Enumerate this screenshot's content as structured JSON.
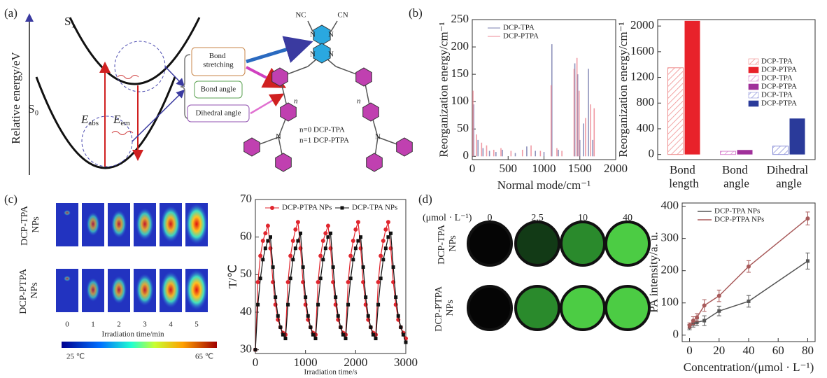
{
  "panel_labels": [
    "(a)",
    "(b)",
    "(c)",
    "(d)"
  ],
  "diagram": {
    "y_axis_label": "Relative energy/eV",
    "s1": "S₁",
    "s0": "S₀",
    "e_abs": {
      "main": "E",
      "sub": "abs"
    },
    "e_em": {
      "main": "E",
      "sub": "em"
    },
    "boxes": [
      "Bond stretching",
      "Bond angle",
      "Dihedral angle"
    ],
    "molecule": {
      "nc": "NC",
      "cn": "CN",
      "atom": "N",
      "repeat": "n",
      "names": [
        "n=0 DCP-TPA",
        "n=1 DCP-PTPA"
      ]
    }
  },
  "thermal_images": {
    "rows": [
      "DCP-TPA NPs",
      "DCP-PTPA NPs"
    ],
    "times": [
      "0",
      "1",
      "2",
      "3",
      "4",
      "5"
    ],
    "x_label": "Irradiation time/min",
    "colorbar": [
      "25 ℃",
      "65 ℃"
    ]
  },
  "pa_images": {
    "unit": "(μmol · L⁻¹)",
    "concentrations": [
      "0",
      "2.5",
      "10",
      "40"
    ],
    "rows": [
      "DCP-TPA NPs",
      "DCP-PTPA NPs"
    ]
  },
  "chart_data": [
    {
      "type": "stick",
      "x_label": "Normal mode/cm⁻¹",
      "y_label": "Reorganization energy/cm⁻¹",
      "xlim": [
        0,
        2000
      ],
      "xticks": [
        0,
        500,
        1000,
        1500,
        2000
      ],
      "ylim": [
        -6,
        250
      ],
      "yticks": [
        0,
        50,
        100,
        150,
        200,
        250
      ],
      "legend": "upper left",
      "series": [
        {
          "name": "DCP-TPA",
          "color": "#7b7fb0",
          "x": [
            20,
            80,
            150,
            240,
            330,
            420,
            600,
            760,
            880,
            1000,
            1110,
            1200,
            1430,
            1470,
            1500,
            1550,
            1620,
            1680
          ],
          "values": [
            95,
            30,
            15,
            10,
            8,
            12,
            6,
            18,
            10,
            8,
            205,
            12,
            170,
            150,
            30,
            60,
            160,
            30
          ]
        },
        {
          "name": "DCP-PTPA",
          "color": "#ee8a96",
          "x": [
            10,
            60,
            130,
            200,
            300,
            400,
            540,
            700,
            820,
            950,
            1100,
            1180,
            1250,
            1420,
            1460,
            1490,
            1580,
            1650,
            1700
          ],
          "values": [
            120,
            40,
            25,
            20,
            12,
            15,
            10,
            12,
            20,
            10,
            130,
            15,
            10,
            160,
            180,
            120,
            70,
            95,
            88
          ]
        }
      ]
    },
    {
      "type": "bar",
      "y_label": "Reorganization energy/cm⁻¹",
      "categories": [
        "Bond length",
        "Bond angle",
        "Dihedral angle"
      ],
      "ylim": [
        -80,
        2100
      ],
      "yticks": [
        0,
        400,
        800,
        1200,
        1600,
        2000
      ],
      "legend": "center right",
      "series": [
        {
          "name": "DCP-TPA",
          "color": "#ee8a8a",
          "hatched": true,
          "values": [
            1350,
            null,
            null
          ]
        },
        {
          "name": "DCP-PTPA",
          "color": "#e8222a",
          "hatched": false,
          "values": [
            2080,
            null,
            null
          ]
        },
        {
          "name": "DCP-TPA",
          "color": "#d98ad0",
          "hatched": true,
          "values": [
            null,
            50,
            null
          ]
        },
        {
          "name": "DCP-PTPA",
          "color": "#a0309a",
          "hatched": false,
          "values": [
            null,
            70,
            null
          ]
        },
        {
          "name": "DCP-TPA",
          "color": "#8a8fd8",
          "hatched": true,
          "values": [
            null,
            null,
            130
          ]
        },
        {
          "name": "DCP-PTPA",
          "color": "#2a3a9a",
          "hatched": false,
          "values": [
            null,
            null,
            560
          ]
        }
      ]
    },
    {
      "type": "line",
      "x_label": "Irradiation time/s",
      "y_label": "T/℃",
      "xlim": [
        0,
        3000
      ],
      "xticks": [
        0,
        1000,
        2000,
        3000
      ],
      "ylim": [
        29,
        70
      ],
      "yticks": [
        30,
        40,
        50,
        60,
        70
      ],
      "legend": "upper center",
      "x": [
        0,
        50,
        100,
        150,
        200,
        250,
        300,
        350,
        400,
        450,
        500,
        550,
        600,
        650,
        700,
        750,
        800,
        850,
        900,
        950,
        1000,
        1050,
        1100,
        1150,
        1200,
        1250,
        1300,
        1350,
        1400,
        1450,
        1500,
        1550,
        1600,
        1650,
        1700,
        1750,
        1800,
        1850,
        1900,
        1950,
        2000,
        2050,
        2100,
        2150,
        2200,
        2250,
        2300,
        2350,
        2400,
        2450,
        2500,
        2550,
        2600,
        2650,
        2700,
        2750,
        2800,
        2850,
        2900,
        2950,
        3000
      ],
      "series": [
        {
          "name": "DCP-PTPA NPs",
          "color": "#e0262e",
          "marker": "circle",
          "values": [
            30,
            48,
            55,
            59,
            61,
            63,
            57,
            48,
            42,
            38,
            36,
            34.5,
            34,
            48,
            55,
            59,
            62,
            64,
            57,
            48,
            42,
            38,
            36,
            34.5,
            34,
            48,
            55,
            59,
            61,
            63,
            57,
            48,
            42,
            38,
            36,
            34.5,
            34,
            48,
            55,
            59,
            62,
            64,
            57,
            48,
            42,
            38,
            36,
            34.5,
            34,
            48,
            55,
            59,
            62,
            64,
            57,
            48,
            42,
            38,
            36,
            34.5,
            33
          ]
        },
        {
          "name": "DCP-TPA NPs",
          "color": "#111111",
          "marker": "square",
          "values": [
            30,
            42,
            49,
            54,
            57,
            59,
            60,
            52,
            44,
            39,
            36,
            34,
            33,
            42,
            49,
            54,
            57,
            59,
            61,
            52,
            44,
            39,
            36,
            34,
            33,
            42,
            49,
            54,
            57,
            60,
            61,
            52,
            44,
            39,
            36,
            34,
            33,
            42,
            49,
            54,
            57,
            59,
            60,
            52,
            44,
            39,
            36,
            34,
            33,
            42,
            49,
            54,
            57,
            60,
            61,
            52,
            44,
            39,
            36,
            34,
            32
          ]
        }
      ]
    },
    {
      "type": "errorbar",
      "x_label": "Concentration/(μmol · L⁻¹)",
      "y_label": "PA intensity/a. u.",
      "xlim": [
        -5,
        85
      ],
      "xticks": [
        0,
        20,
        40,
        60,
        80
      ],
      "ylim": [
        -20,
        410
      ],
      "yticks": [
        0,
        100,
        200,
        300,
        400
      ],
      "legend": "upper left",
      "x": [
        0,
        2.5,
        5,
        10,
        20,
        40,
        80
      ],
      "series": [
        {
          "name": "DCP-TPA NPs",
          "color": "#555555",
          "marker": "square",
          "values": [
            25,
            35,
            40,
            45,
            75,
            105,
            230
          ],
          "errors": [
            8,
            10,
            10,
            15,
            15,
            18,
            25
          ]
        },
        {
          "name": "DCP-PTPA NPs",
          "color": "#a85a5a",
          "marker": "circle",
          "values": [
            30,
            45,
            55,
            92,
            122,
            213,
            362
          ],
          "errors": [
            8,
            12,
            12,
            18,
            18,
            18,
            20
          ]
        }
      ]
    }
  ]
}
